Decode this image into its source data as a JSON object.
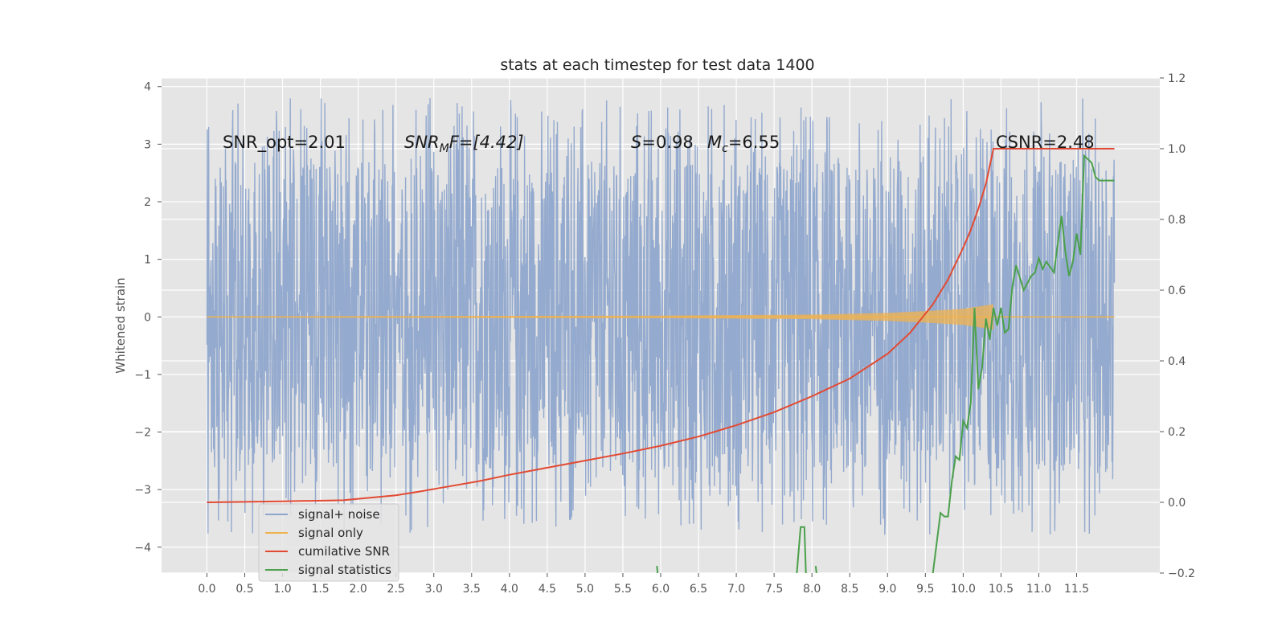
{
  "chart_data": {
    "type": "line",
    "title": "stats at each timestep for test data 1400",
    "ylabel": "Whitened strain",
    "xlim": [
      -0.6,
      12.6
    ],
    "ylim": [
      -4.45,
      4.15
    ],
    "y2lim": [
      -0.2,
      1.2
    ],
    "grid": true,
    "legend_placement": "lower-left",
    "x_ticks": [
      "0.0",
      "0.5",
      "1.0",
      "1.5",
      "2.0",
      "2.5",
      "3.0",
      "3.5",
      "4.0",
      "4.5",
      "5.0",
      "5.5",
      "6.0",
      "6.5",
      "7.0",
      "7.5",
      "8.0",
      "8.5",
      "9.0",
      "9.5",
      "10.0",
      "10.5",
      "11.0",
      "11.5"
    ],
    "y_ticks": [
      -4,
      -3,
      -2,
      -1,
      0,
      1,
      2,
      3,
      4
    ],
    "y2_ticks": [
      "−0.2",
      "0.0",
      "0.2",
      "0.4",
      "0.6",
      "0.8",
      "1.0",
      "1.2"
    ],
    "y2_tick_values": [
      -0.2,
      0.0,
      0.2,
      0.4,
      0.6,
      0.8,
      1.0,
      1.2
    ],
    "annotations": {
      "snr_opt": "SNR_opt=2.01",
      "snr_mf_main": "SNR",
      "snr_mf_sub": "M",
      "snr_mf_rest": "F=[4.42]",
      "s_main": "S",
      "s_rest": "=0.98",
      "mc_main": "M",
      "mc_sub": "c",
      "mc_rest": "=6.55",
      "csnr": "CSNR=2.48"
    },
    "series": [
      {
        "name": "signal+ noise",
        "color": "#8fa6cc",
        "axis": "left",
        "x_range": [
          0.0,
          12.0
        ],
        "envelope": {
          "max_typical": 2.7,
          "min_typical": -2.6,
          "max_peak": 3.8,
          "min_peak": -4.05
        }
      },
      {
        "name": "signal only",
        "color": "#f0b24d",
        "axis": "left",
        "x": [
          0.0,
          6.0,
          8.0,
          9.0,
          9.5,
          10.0,
          10.2,
          10.4
        ],
        "amplitude": [
          0.01,
          0.02,
          0.04,
          0.07,
          0.1,
          0.14,
          0.18,
          0.22
        ]
      },
      {
        "name": "cumilative SNR",
        "color": "#e24a33",
        "axis": "right",
        "x": [
          0.0,
          1.0,
          1.8,
          2.5,
          2.8,
          3.2,
          3.6,
          4.0,
          4.5,
          5.0,
          5.5,
          6.0,
          6.5,
          7.0,
          7.5,
          8.0,
          8.5,
          9.0,
          9.3,
          9.6,
          9.8,
          10.0,
          10.1,
          10.2,
          10.3,
          10.4,
          12.0
        ],
        "y": [
          0.0,
          0.003,
          0.006,
          0.02,
          0.03,
          0.045,
          0.06,
          0.078,
          0.098,
          0.118,
          0.138,
          0.16,
          0.186,
          0.218,
          0.255,
          0.3,
          0.35,
          0.42,
          0.48,
          0.56,
          0.63,
          0.72,
          0.77,
          0.83,
          0.9,
          1.0,
          1.0
        ],
        "end_label": ""
      },
      {
        "name": "signal statistics",
        "color": "#4ba04b",
        "axis": "right",
        "segments": [
          {
            "x": [
              5.95,
              5.96
            ],
            "y": [
              -0.18,
              -0.2
            ]
          },
          {
            "x": [
              7.8,
              7.85,
              7.9,
              7.92
            ],
            "y": [
              -0.2,
              -0.07,
              -0.07,
              -0.2
            ]
          },
          {
            "x": [
              8.05,
              8.06
            ],
            "y": [
              -0.18,
              -0.2
            ]
          },
          {
            "x": [
              9.6,
              9.7,
              9.75,
              9.8,
              9.85,
              9.9,
              9.95,
              10.0,
              10.05,
              10.1,
              10.15,
              10.2,
              10.25,
              10.3,
              10.35,
              10.4,
              10.45,
              10.5,
              10.55,
              10.6,
              10.65,
              10.7,
              10.8,
              10.9,
              10.95,
              11.0,
              11.05,
              11.1,
              11.2,
              11.3,
              11.35,
              11.4,
              11.45,
              11.5,
              11.55,
              11.6,
              11.65,
              11.7,
              11.75,
              11.8,
              11.85,
              11.9,
              12.0
            ],
            "y": [
              -0.2,
              -0.03,
              -0.04,
              -0.04,
              0.06,
              0.13,
              0.12,
              0.23,
              0.21,
              0.28,
              0.55,
              0.32,
              0.38,
              0.52,
              0.46,
              0.55,
              0.5,
              0.55,
              0.48,
              0.49,
              0.61,
              0.67,
              0.6,
              0.64,
              0.65,
              0.69,
              0.66,
              0.68,
              0.65,
              0.81,
              0.71,
              0.64,
              0.68,
              0.76,
              0.7,
              0.98,
              0.97,
              0.96,
              0.92,
              0.91,
              0.91,
              0.91,
              0.91
            ]
          }
        ]
      }
    ]
  }
}
